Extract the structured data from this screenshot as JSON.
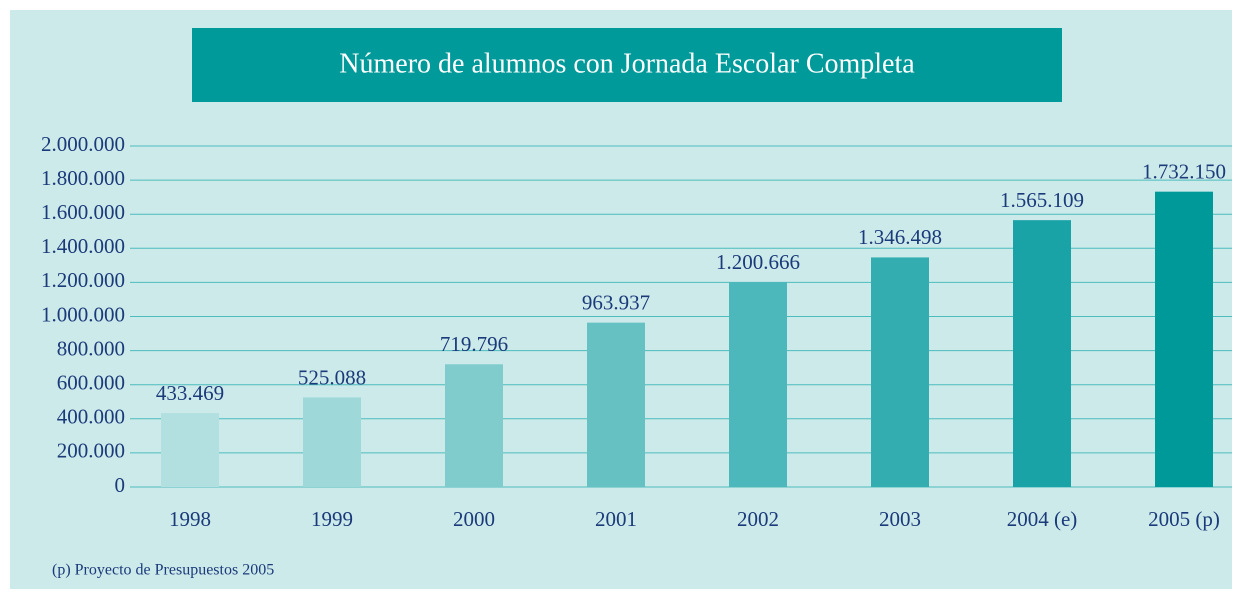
{
  "chart_data": {
    "type": "bar",
    "title": "Número de alumnos con Jornada Escolar Completa",
    "categories": [
      "1998",
      "1999",
      "2000",
      "2001",
      "2002",
      "2003",
      "2004 (e)",
      "2005 (p)"
    ],
    "values": [
      433469,
      525088,
      719796,
      963937,
      1200666,
      1346498,
      1565109,
      1732150
    ],
    "value_labels": [
      "433.469",
      "525.088",
      "719.796",
      "963.937",
      "1.200.666",
      "1.346.498",
      "1.565.109",
      "1.732.150"
    ],
    "colors": [
      "#b2e0e0",
      "#9fd8d8",
      "#80cccc",
      "#66c2c2",
      "#4db8bc",
      "#33adb0",
      "#1aa3a6",
      "#009999"
    ],
    "ylim": [
      0,
      2000000
    ],
    "yticks": [
      0,
      {
        "value": 200000,
        "label": "200.000"
      },
      {
        "value": 400000,
        "label": "400.000"
      },
      {
        "value": 600000,
        "label": "600.000"
      },
      {
        "value": 800000,
        "label": "800.000"
      },
      {
        "value": 1000000,
        "label": "1.000.000"
      },
      {
        "value": 1200000,
        "label": "1.200.000"
      },
      {
        "value": 1400000,
        "label": "1.400.000"
      },
      {
        "value": 1600000,
        "label": "1.600.000"
      },
      {
        "value": 1800000,
        "label": "1.800.000"
      },
      {
        "value": 2000000,
        "label": "2.000.000"
      }
    ],
    "grid": true,
    "note": "(p) Proyecto de Presupuestos 2005"
  }
}
